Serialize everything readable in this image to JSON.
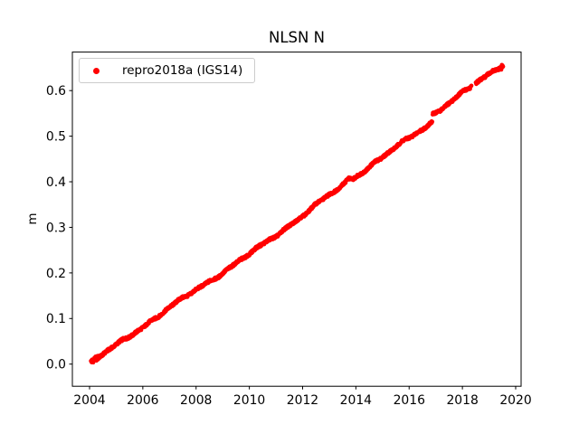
{
  "figure": {
    "background": "#ffffff",
    "spine_color": "#000000",
    "tick_color": "#000000",
    "legend_edge_color": "#cccccc"
  },
  "chart_data": {
    "type": "scatter",
    "title": "NLSN N",
    "xlabel": "",
    "ylabel": "m",
    "xlim": [
      2003.355,
      2020.204
    ],
    "ylim": [
      -0.0486,
      0.6845
    ],
    "xticks": [
      "2004",
      "2006",
      "2008",
      "2010",
      "2012",
      "2014",
      "2016",
      "2018",
      "2020"
    ],
    "yticks": [
      "0.0",
      "0.1",
      "0.2",
      "0.3",
      "0.4",
      "0.5",
      "0.6"
    ],
    "grid": false,
    "legend": {
      "position": "upper left",
      "entries": [
        {
          "label": "repro2018a (IGS14)",
          "color": "#ff0000",
          "marker": "point"
        }
      ]
    },
    "series": [
      {
        "name": "repro2018a (IGS14)",
        "color": "#ff0000",
        "marker": "point",
        "marker_radius_px": 2.2,
        "segments": [
          [
            2004.05,
            2018.34
          ],
          [
            2018.5,
            2019.53
          ]
        ],
        "trend": {
          "t0": 2004.05,
          "v0": 0.002,
          "slope_m_per_yr": 0.0413
        },
        "offsets": [
          {
            "t": 2016.87,
            "dv": 0.016
          }
        ],
        "transients": [
          {
            "t": 2013.72,
            "amp": 0.006,
            "sigma": 0.1
          },
          {
            "t": 2010.3,
            "amp": -0.007,
            "sigma": 2.2
          }
        ],
        "scatter_noise_amp": 0.006,
        "sample_interval_yr": 0.01,
        "approx_values_by_year": {
          "2004.1": 0.005,
          "2006": 0.083,
          "2008": 0.162,
          "2010": 0.241,
          "2012": 0.328,
          "2013": 0.373,
          "2014": 0.413,
          "2016": 0.496,
          "2016.9_pre_step": 0.531,
          "2016.9_post_step": 0.547,
          "2018.34_pre_gap": 0.607,
          "2018.5_post_gap": 0.614,
          "2019": 0.634,
          "2019.53_end": 0.658
        }
      }
    ]
  }
}
